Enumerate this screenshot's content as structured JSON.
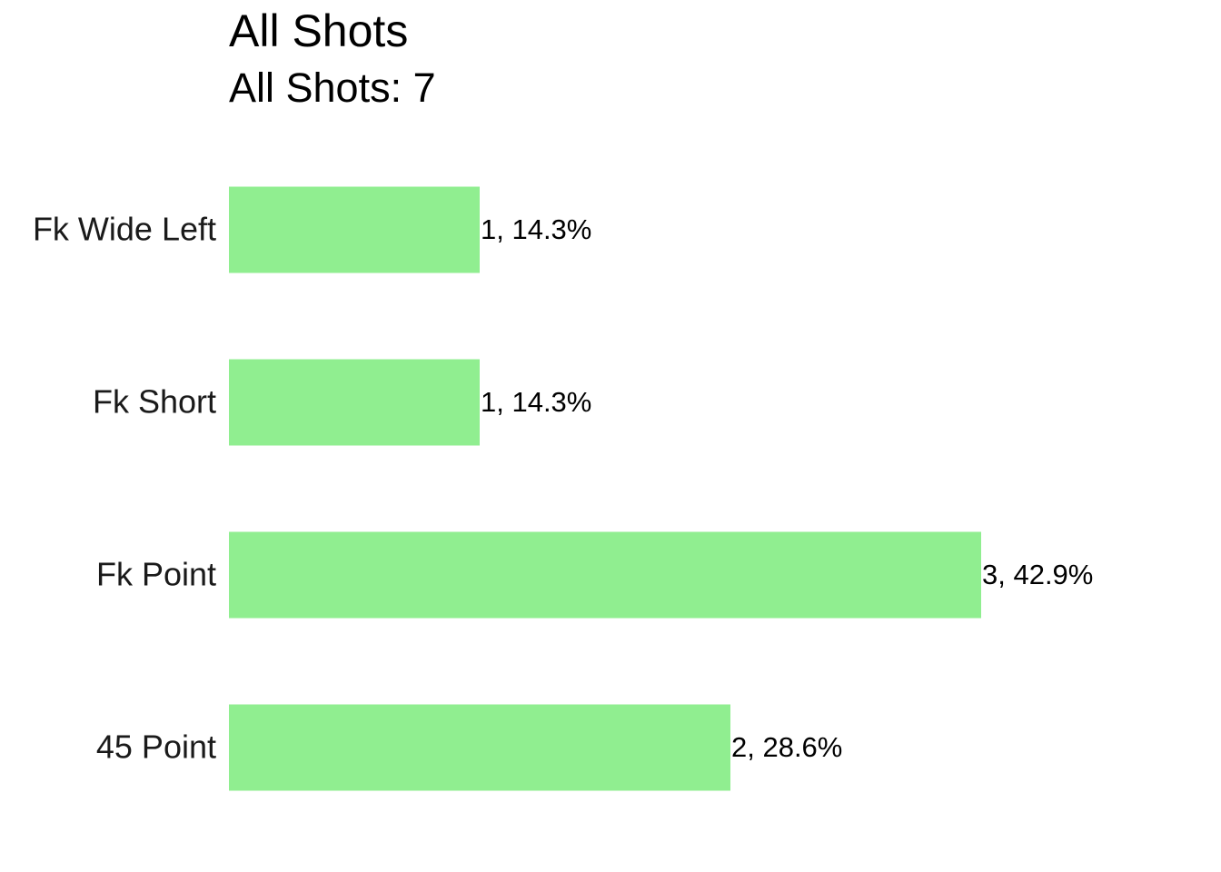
{
  "chart_data": {
    "type": "bar",
    "orientation": "horizontal",
    "title": "All Shots",
    "subtitle": "All Shots: 7",
    "categories": [
      "Fk Wide Left",
      "Fk Short",
      "Fk Point",
      "45 Point"
    ],
    "values": [
      1,
      1,
      3,
      2
    ],
    "value_labels": [
      "1, 14.3%",
      "1, 14.3%",
      "3, 42.9%",
      "2, 28.6%"
    ],
    "color": "#90ee90",
    "grid": false
  }
}
